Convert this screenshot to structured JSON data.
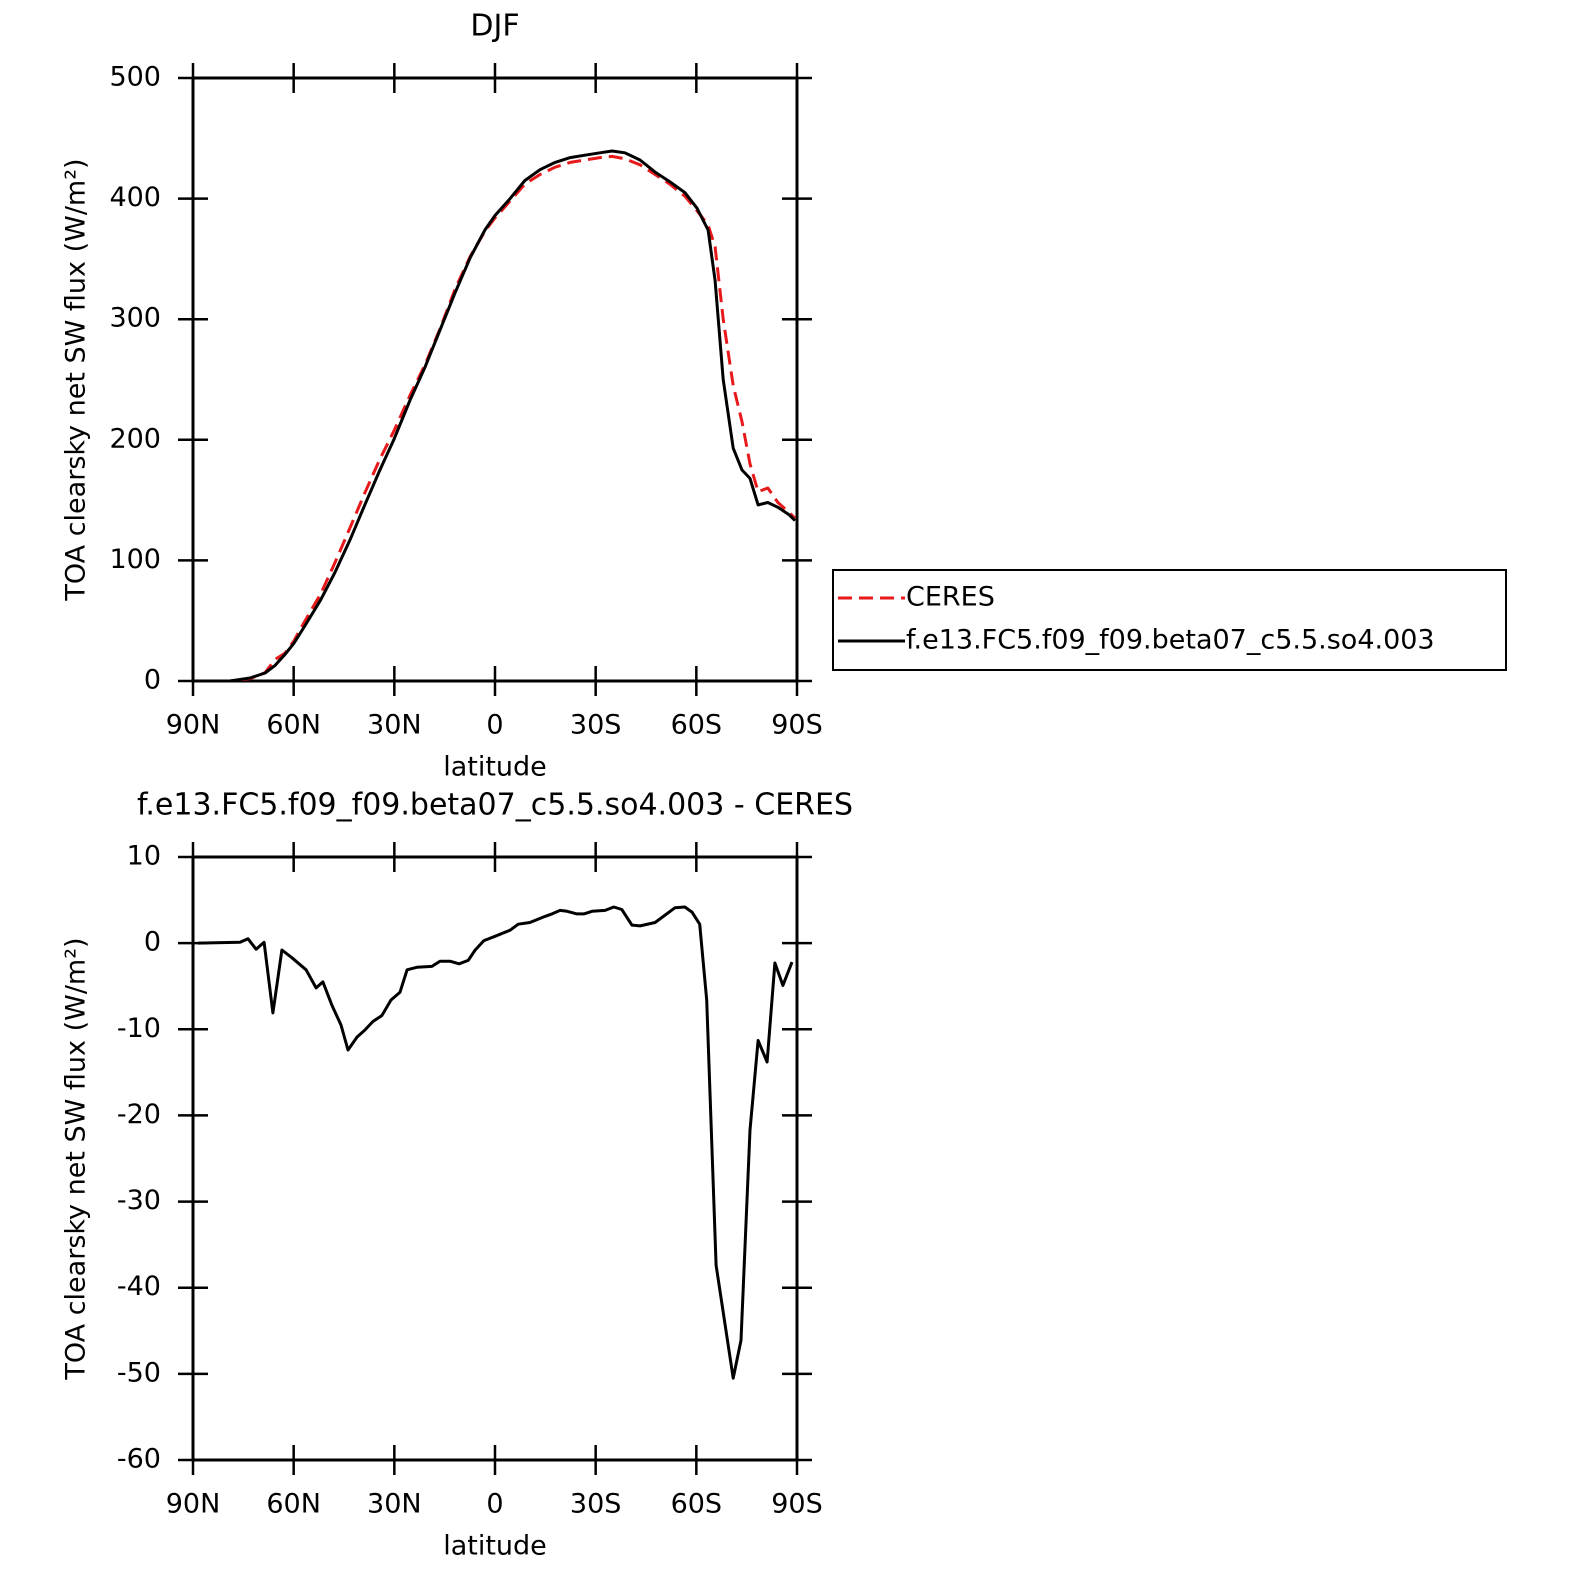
{
  "chart_data": [
    {
      "type": "line",
      "title": "DJF",
      "xlabel": "latitude",
      "ylabel": "TOA clearsky net SW flux (W/m²)",
      "x": [
        88,
        79,
        73,
        68.5,
        65.5,
        62.6,
        60,
        56.6,
        52,
        47.7,
        43.2,
        38.8,
        34.3,
        30,
        25.3,
        20.9,
        16.4,
        11.9,
        7.4,
        3,
        0,
        -4.5,
        -8.9,
        -13.4,
        -17.9,
        -22.4,
        -26.8,
        -31.3,
        -34.9,
        -38.7,
        -43.2,
        -47.7,
        -52.1,
        -56.6,
        -60.2,
        -63.5,
        -65.6,
        -68,
        -71,
        -73.6,
        -76,
        -78.4,
        -81.3,
        -84.3,
        -87.6,
        -89.4
      ],
      "series": [
        {
          "name": "CERES",
          "color": "#e8191b",
          "linestyle": "dashed",
          "values": [
            0,
            0,
            2,
            7,
            18,
            23,
            33,
            50,
            72,
            98,
            127,
            156,
            184,
            208,
            237,
            262,
            292,
            325,
            352,
            373,
            384,
            398,
            412,
            420,
            426,
            430,
            432,
            434,
            435,
            433,
            428,
            420,
            412,
            402,
            390,
            378,
            360,
            300,
            245,
            215,
            180,
            157,
            160,
            148,
            140,
            135
          ]
        },
        {
          "name": "f.e13.FC5.f09_f09.beta07_c5.5.so4.003",
          "color": "#000000",
          "linestyle": "solid",
          "values": [
            0,
            0,
            2.5,
            6.6,
            13,
            22,
            31,
            46,
            67,
            90,
            117,
            146,
            175,
            201,
            233,
            260,
            291,
            322,
            351,
            374,
            386,
            400,
            415,
            424,
            430,
            434,
            436,
            438,
            439.5,
            438,
            432,
            422,
            414,
            405,
            392,
            374,
            332,
            250,
            193,
            175,
            168,
            146,
            148,
            144,
            138,
            133
          ]
        }
      ],
      "xlim": [
        90,
        -90
      ],
      "xticks": [
        {
          "value": 90,
          "label": "90N"
        },
        {
          "value": 60,
          "label": "60N"
        },
        {
          "value": 30,
          "label": "30N"
        },
        0,
        {
          "value": -30,
          "label": "30S"
        },
        {
          "value": -60,
          "label": "60S"
        },
        {
          "value": -90,
          "label": "90S"
        }
      ],
      "ylim": [
        0,
        500
      ],
      "yticks": [
        0,
        100,
        200,
        300,
        400,
        500
      ],
      "legend": "right"
    },
    {
      "type": "line",
      "title": "f.e13.FC5.f09_f09.beta07_c5.5.so4.003 - CERES",
      "xlabel": "latitude",
      "ylabel": "TOA clearsky net SW flux (W/m²)",
      "x": [
        88.5,
        76,
        73.6,
        71.2,
        68.8,
        66.2,
        63.5,
        60.5,
        56.3,
        53.3,
        51.3,
        48.6,
        45.9,
        43.8,
        41.1,
        38.8,
        36.4,
        33.7,
        31,
        28.3,
        26.2,
        23.3,
        18.8,
        16.4,
        13.4,
        10.7,
        8,
        5.9,
        3.3,
        0,
        -4.5,
        -6.9,
        -10.4,
        -14.9,
        -17,
        -19.4,
        -21.5,
        -24.4,
        -26.5,
        -28.9,
        -32.8,
        -35.4,
        -37.8,
        -40.8,
        -43.2,
        -47.7,
        -53.6,
        -56.6,
        -58.7,
        -61,
        -63.1,
        -65.9,
        -71,
        -73.3,
        -76,
        -78.4,
        -81.1,
        -83.4,
        -85.8,
        -88.5
      ],
      "series": [
        {
          "color": "#000000",
          "linestyle": "solid",
          "values": [
            0,
            0.1,
            0.5,
            -0.7,
            0.1,
            -8.1,
            -0.8,
            -1.7,
            -3.1,
            -5.2,
            -4.5,
            -7.2,
            -9.5,
            -12.4,
            -10.9,
            -10.1,
            -9.1,
            -8.4,
            -6.6,
            -5.7,
            -3.1,
            -2.8,
            -2.7,
            -2.1,
            -2.1,
            -2.4,
            -2,
            -0.8,
            0.3,
            0.8,
            1.5,
            2.2,
            2.4,
            3.1,
            3.4,
            3.8,
            3.7,
            3.4,
            3.4,
            3.7,
            3.8,
            4.2,
            3.9,
            2.1,
            2,
            2.4,
            4.1,
            4.2,
            3.6,
            2.2,
            -6.6,
            -37.4,
            -50.5,
            -46.1,
            -21.7,
            -11.3,
            -13.8,
            -2.3,
            -4.9,
            -2.2
          ]
        }
      ],
      "xlim": [
        90,
        -90
      ],
      "xticks": [
        {
          "value": 90,
          "label": "90N"
        },
        {
          "value": 60,
          "label": "60N"
        },
        {
          "value": 30,
          "label": "30N"
        },
        0,
        {
          "value": -30,
          "label": "30S"
        },
        {
          "value": -60,
          "label": "60S"
        },
        {
          "value": -90,
          "label": "90S"
        }
      ],
      "ylim": [
        -60,
        10
      ],
      "yticks": [
        -60,
        -50,
        -40,
        -30,
        -20,
        -10,
        0,
        10
      ]
    }
  ]
}
